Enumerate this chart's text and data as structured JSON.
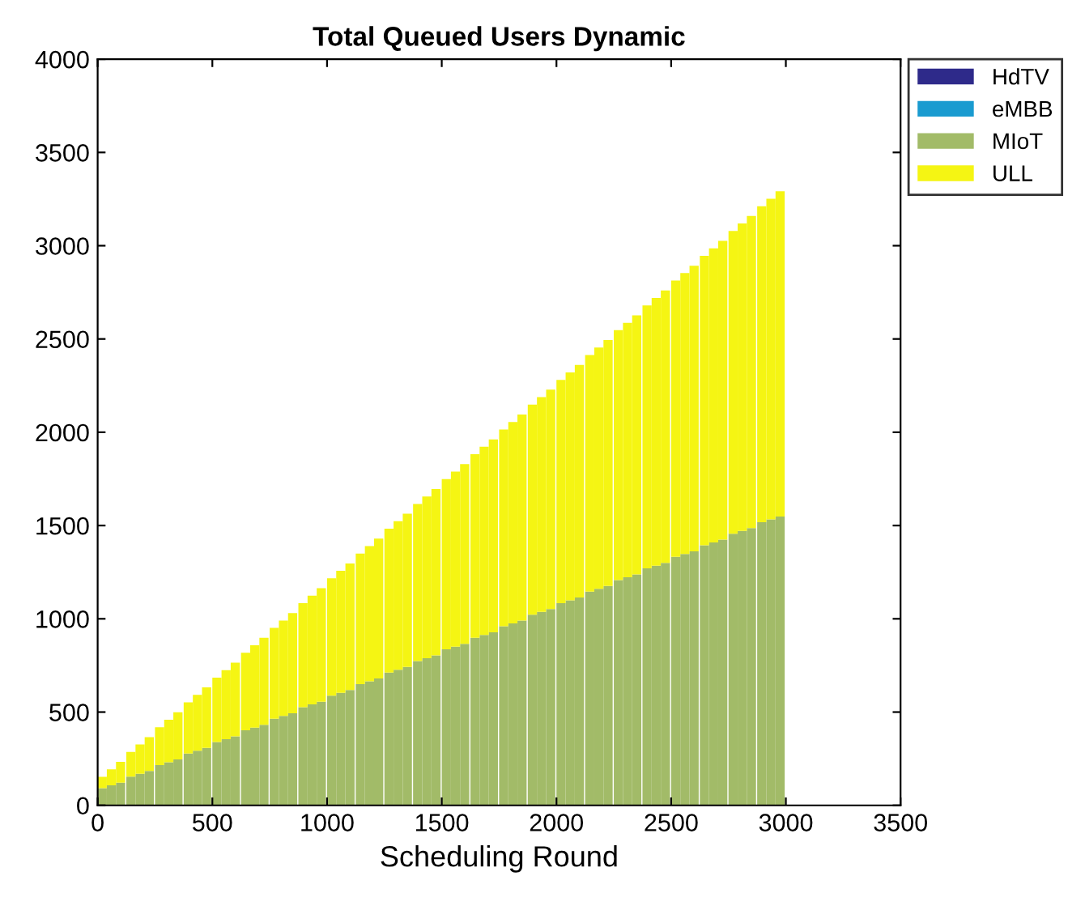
{
  "chart_data": {
    "type": "bar",
    "stacked": true,
    "title": "Total Queued Users Dynamic",
    "xlabel": "Scheduling Round",
    "x": [
      20,
      60,
      100,
      145,
      185,
      225,
      270,
      310,
      350,
      395,
      435,
      475,
      520,
      560,
      600,
      645,
      685,
      725,
      770,
      810,
      850,
      895,
      935,
      975,
      1020,
      1060,
      1100,
      1145,
      1185,
      1225,
      1270,
      1310,
      1350,
      1395,
      1435,
      1475,
      1520,
      1560,
      1600,
      1645,
      1685,
      1725,
      1770,
      1810,
      1850,
      1895,
      1935,
      1975,
      2020,
      2060,
      2100,
      2145,
      2185,
      2225,
      2270,
      2310,
      2350,
      2395,
      2435,
      2475,
      2520,
      2560,
      2600,
      2645,
      2685,
      2725,
      2770,
      2810,
      2850,
      2895,
      2935,
      2975
    ],
    "series": [
      {
        "name": "HdTV",
        "color": "#2e2a8a",
        "values": [
          0,
          0,
          0,
          0,
          0,
          0,
          0,
          0,
          0,
          0,
          0,
          0,
          0,
          0,
          0,
          0,
          0,
          0,
          0,
          0,
          0,
          0,
          0,
          0,
          0,
          0,
          0,
          0,
          0,
          0,
          0,
          0,
          0,
          0,
          0,
          0,
          0,
          0,
          0,
          0,
          0,
          0,
          0,
          0,
          0,
          0,
          0,
          0,
          0,
          0,
          0,
          0,
          0,
          0,
          0,
          0,
          0,
          0,
          0,
          0,
          0,
          0,
          0,
          0,
          0,
          0,
          0,
          0,
          0,
          0,
          0,
          0
        ]
      },
      {
        "name": "eMBB",
        "color": "#1a9bd0",
        "values": [
          0,
          0,
          0,
          0,
          0,
          0,
          0,
          0,
          0,
          0,
          0,
          0,
          0,
          0,
          0,
          0,
          0,
          0,
          0,
          0,
          0,
          0,
          0,
          0,
          0,
          0,
          0,
          0,
          0,
          0,
          0,
          0,
          0,
          0,
          0,
          0,
          0,
          0,
          0,
          0,
          0,
          0,
          0,
          0,
          0,
          0,
          0,
          0,
          0,
          0,
          0,
          0,
          0,
          0,
          0,
          0,
          0,
          0,
          0,
          0,
          0,
          0,
          0,
          0,
          0,
          0,
          0,
          0,
          0,
          0,
          0,
          0
        ]
      },
      {
        "name": "MIoT",
        "color": "#a2bb68",
        "values": [
          92,
          107,
          122,
          154,
          169,
          184,
          216,
          231,
          246,
          278,
          293,
          308,
          340,
          355,
          370,
          402,
          417,
          432,
          464,
          479,
          494,
          526,
          541,
          556,
          588,
          603,
          618,
          650,
          665,
          680,
          712,
          727,
          742,
          774,
          789,
          804,
          836,
          851,
          866,
          898,
          913,
          928,
          960,
          975,
          990,
          1022,
          1037,
          1052,
          1084,
          1099,
          1114,
          1146,
          1161,
          1176,
          1208,
          1223,
          1238,
          1270,
          1285,
          1300,
          1332,
          1347,
          1362,
          1394,
          1409,
          1424,
          1456,
          1471,
          1486,
          1518,
          1533,
          1548
        ]
      },
      {
        "name": "ULL",
        "color": "#f5f513",
        "values": [
          61,
          86,
          111,
          132,
          157,
          182,
          203,
          228,
          253,
          274,
          299,
          324,
          345,
          370,
          395,
          416,
          441,
          466,
          487,
          512,
          537,
          558,
          583,
          608,
          629,
          654,
          679,
          700,
          725,
          750,
          771,
          796,
          821,
          842,
          867,
          892,
          913,
          938,
          963,
          984,
          1009,
          1034,
          1055,
          1080,
          1105,
          1126,
          1151,
          1176,
          1197,
          1222,
          1247,
          1268,
          1293,
          1318,
          1339,
          1364,
          1389,
          1410,
          1435,
          1460,
          1481,
          1506,
          1531,
          1552,
          1577,
          1602,
          1623,
          1648,
          1673,
          1694,
          1719,
          1744
        ]
      }
    ],
    "xlim": [
      0,
      3500
    ],
    "xticks": [
      0,
      500,
      1000,
      1500,
      2000,
      2500,
      3000,
      3500
    ],
    "ylim": [
      0,
      4000
    ],
    "yticks": [
      0,
      500,
      1000,
      1500,
      2000,
      2500,
      3000,
      3500,
      4000
    ],
    "legend": "top right",
    "grid": false
  }
}
